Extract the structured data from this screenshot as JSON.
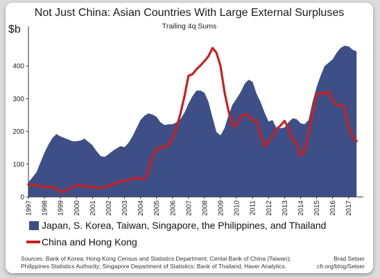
{
  "chart_data": {
    "type": "area",
    "title": "Not Just China: Asian Countries With Large External Surpluses",
    "subtitle": "Trailing 4q Sums",
    "ylabel": "$b",
    "ylim": [
      0,
      500
    ],
    "xlim": [
      1997,
      2017.75
    ],
    "yticks": [
      0,
      100,
      200,
      300,
      400
    ],
    "ytick_labels": [
      "0",
      "100",
      "200",
      "300",
      "400"
    ],
    "xticks": [
      "1997",
      "1998",
      "1999",
      "2000",
      "2001",
      "2002",
      "2003",
      "2004",
      "2005",
      "2006",
      "2007",
      "2008",
      "2009",
      "2010",
      "2011",
      "2012",
      "2013",
      "2014",
      "2015",
      "2016",
      "2017"
    ],
    "grid": false,
    "legend_position": "bottom",
    "series": [
      {
        "name": "Japan, S. Korea, Taiwan, Singapore, the Philippines, and Thailand",
        "type": "area",
        "color": "#3d4f86",
        "x": [
          1997,
          1997.25,
          1997.5,
          1997.75,
          1998,
          1998.25,
          1998.5,
          1998.75,
          1999,
          1999.25,
          1999.5,
          1999.75,
          2000,
          2000.25,
          2000.5,
          2000.75,
          2001,
          2001.25,
          2001.5,
          2001.75,
          2002,
          2002.25,
          2002.5,
          2002.75,
          2003,
          2003.25,
          2003.5,
          2003.75,
          2004,
          2004.25,
          2004.5,
          2004.75,
          2005,
          2005.25,
          2005.5,
          2005.75,
          2006,
          2006.25,
          2006.5,
          2006.75,
          2007,
          2007.25,
          2007.5,
          2007.75,
          2008,
          2008.25,
          2008.5,
          2008.75,
          2009,
          2009.25,
          2009.5,
          2009.75,
          2010,
          2010.25,
          2010.5,
          2010.75,
          2011,
          2011.25,
          2011.5,
          2011.75,
          2012,
          2012.25,
          2012.5,
          2012.75,
          2013,
          2013.25,
          2013.5,
          2013.75,
          2014,
          2014.25,
          2014.5,
          2014.75,
          2015,
          2015.25,
          2015.5,
          2015.75,
          2016,
          2016.25,
          2016.5,
          2016.75,
          2017,
          2017.25,
          2017.5
        ],
        "values": [
          45,
          60,
          75,
          105,
          135,
          160,
          180,
          192,
          185,
          180,
          175,
          170,
          170,
          172,
          178,
          168,
          158,
          140,
          125,
          122,
          130,
          140,
          148,
          155,
          152,
          165,
          185,
          210,
          235,
          248,
          255,
          252,
          245,
          228,
          220,
          222,
          222,
          228,
          238,
          258,
          285,
          308,
          325,
          325,
          318,
          290,
          242,
          198,
          188,
          210,
          250,
          282,
          300,
          320,
          345,
          358,
          352,
          315,
          290,
          258,
          230,
          235,
          210,
          210,
          212,
          228,
          240,
          238,
          225,
          222,
          235,
          290,
          335,
          370,
          400,
          410,
          420,
          440,
          455,
          462,
          460,
          450,
          445
        ]
      },
      {
        "name": "China and Hong Kong",
        "type": "line",
        "color": "#cc1e1e",
        "x": [
          1997,
          1997.25,
          1997.5,
          1997.75,
          1998,
          1998.25,
          1998.5,
          1998.75,
          1999,
          1999.25,
          1999.5,
          1999.75,
          2000,
          2000.25,
          2000.5,
          2000.75,
          2001,
          2001.25,
          2001.5,
          2001.75,
          2002,
          2002.25,
          2002.5,
          2002.75,
          2003,
          2003.25,
          2003.5,
          2003.75,
          2004,
          2004.25,
          2004.5,
          2004.75,
          2005,
          2005.25,
          2005.5,
          2005.75,
          2006,
          2006.25,
          2006.5,
          2006.75,
          2007,
          2007.25,
          2007.5,
          2007.75,
          2008,
          2008.25,
          2008.5,
          2008.75,
          2009,
          2009.25,
          2009.5,
          2009.75,
          2010,
          2010.25,
          2010.5,
          2010.75,
          2011,
          2011.25,
          2011.5,
          2011.75,
          2012,
          2012.25,
          2012.5,
          2012.75,
          2013,
          2013.25,
          2013.5,
          2013.75,
          2014,
          2014.25,
          2014.5,
          2014.75,
          2015,
          2015.25,
          2015.5,
          2015.75,
          2016,
          2016.25,
          2016.5,
          2016.75,
          2017,
          2017.25,
          2017.5
        ],
        "values": [
          38,
          37,
          36,
          33,
          30,
          31,
          30,
          25,
          15,
          16,
          25,
          30,
          35,
          37,
          32,
          30,
          32,
          28,
          27,
          30,
          33,
          38,
          42,
          48,
          47,
          52,
          55,
          58,
          56,
          55,
          80,
          122,
          145,
          152,
          152,
          160,
          180,
          212,
          255,
          308,
          370,
          375,
          390,
          402,
          415,
          430,
          455,
          440,
          400,
          320,
          262,
          218,
          218,
          245,
          252,
          248,
          235,
          233,
          190,
          155,
          168,
          185,
          208,
          218,
          232,
          210,
          175,
          165,
          125,
          143,
          190,
          252,
          315,
          318,
          315,
          322,
          295,
          282,
          280,
          275,
          210,
          185,
          170
        ]
      }
    ]
  },
  "legend": [
    {
      "label": "Japan, S. Korea, Taiwan, Singapore, the Philippines, and Thailand",
      "swatch": "area",
      "color": "#3d4f86"
    },
    {
      "label": "China and Hong Kong",
      "swatch": "line",
      "color": "#cc1e1e"
    }
  ],
  "sources": {
    "prefix": "Sources:",
    "line1": " Bank of Korea; Hong Kong Census and Statistics Department; Cental Bank of China (Taiwan);",
    "line2": "Philippines Statistics Authority; Singapore Department of Statistics;  Bank of Thailand; Haver Analytics."
  },
  "author": {
    "name": "Brad Setser",
    "url": "cfr.org/blog/Setser"
  }
}
